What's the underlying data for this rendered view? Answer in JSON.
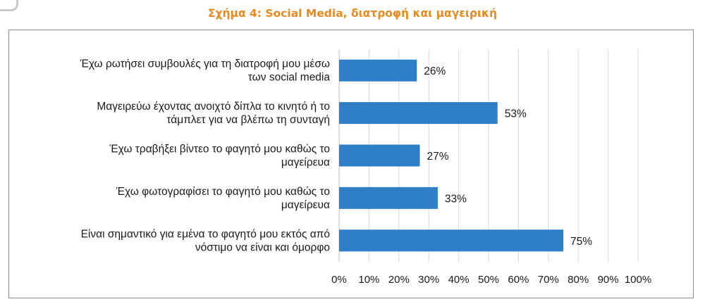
{
  "title": "Σχήμα 4: Social Media, διατροφή και μαγειρική",
  "chart_data": {
    "type": "bar",
    "orientation": "horizontal",
    "categories": [
      [
        "Έχω ρωτήσει συμβουλές για τη  διατροφή μου μέσω",
        "των social media"
      ],
      [
        "Μαγειρεύω έχοντας ανοιχτό δίπλα το κινητό ή το",
        "τάμπλετ για να βλέπω τη συνταγή"
      ],
      [
        "Έχω τραβήξει βίντεο το φαγητό μου καθώς το",
        "μαγείρευα"
      ],
      [
        "Έχω φωτογραφίσει το φαγητό μου καθώς το",
        "μαγείρευα"
      ],
      [
        "Είναι σημαντικό για εμένα το φαγητό μου εκτός από",
        "νόστιμο να είναι και όμορφο"
      ]
    ],
    "values": [
      26,
      53,
      27,
      33,
      75
    ],
    "data_labels": [
      "26%",
      "53%",
      "27%",
      "33%",
      "75%"
    ],
    "xlim": [
      0,
      100
    ],
    "xticks": [
      "0%",
      "10%",
      "20%",
      "30%",
      "40%",
      "50%",
      "60%",
      "70%",
      "80%",
      "90%",
      "100%"
    ],
    "grid": "vertical",
    "bar_color": "#2e7fc7"
  }
}
